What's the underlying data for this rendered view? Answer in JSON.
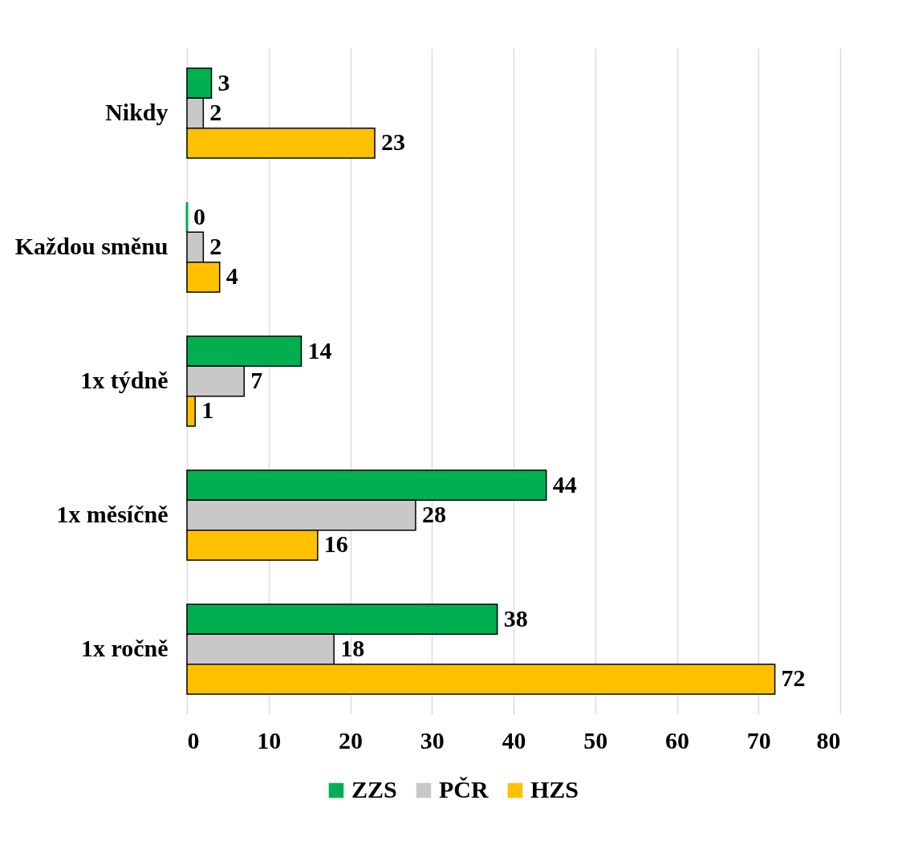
{
  "chart_data": {
    "type": "bar",
    "orientation": "horizontal",
    "categories": [
      "Nikdy",
      "Každou směnu",
      "1x týdně",
      "1x měsíčně",
      "1x ročně"
    ],
    "series": [
      {
        "name": "ZZS",
        "color": "#00b050",
        "values": [
          3,
          0,
          14,
          44,
          38
        ]
      },
      {
        "name": "PČR",
        "color": "#c8c8c8",
        "values": [
          2,
          2,
          7,
          28,
          18
        ]
      },
      {
        "name": "HZS",
        "color": "#ffc000",
        "values": [
          23,
          4,
          1,
          16,
          72
        ]
      }
    ],
    "xlim": [
      0,
      80
    ],
    "xticks": [
      0,
      10,
      20,
      30,
      40,
      50,
      60,
      70,
      80
    ],
    "grid": "x",
    "legend": "bottom",
    "data_labels": true
  }
}
